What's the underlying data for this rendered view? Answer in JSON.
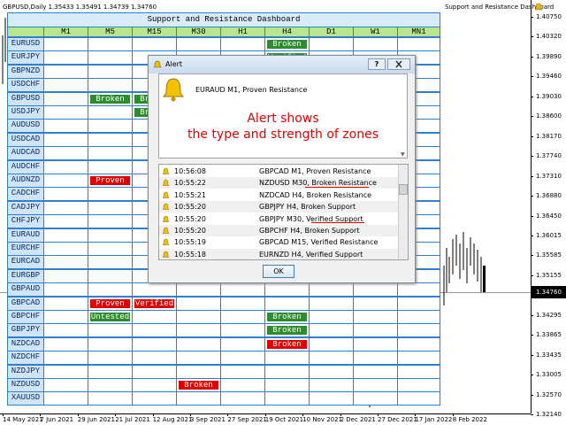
{
  "chart_header": {
    "symbol_info": "GBPUSD,Daily  1.35433 1.35491 1.34739 1.34760",
    "indicator_name": "Support and Resistance Dashboard"
  },
  "price_axis": {
    "labels": [
      "1.40750",
      "1.40320",
      "1.39890",
      "1.39460",
      "1.39030",
      "1.38600",
      "1.38170",
      "1.37740",
      "1.37310",
      "1.36880",
      "1.36450",
      "1.36015",
      "1.35585",
      "1.35155",
      "1.34295",
      "1.33865",
      "1.33435",
      "1.33005",
      "1.32570",
      "1.32140"
    ],
    "current_price": "1.34760"
  },
  "time_axis": {
    "labels": [
      "14 May 2021",
      "7 Jun 2021",
      "29 Jun 2021",
      "21 Jul 2021",
      "12 Aug 2021",
      "3 Sep 2021",
      "27 Sep 2021",
      "19 Oct 2021",
      "10 Nov 2021",
      "2 Dec 2021",
      "27 Dec 2021",
      "17 Jan 2022",
      "8 Feb 2022"
    ]
  },
  "dashboard": {
    "title": "Support and Resistance Dashboard",
    "timeframes": [
      "M1",
      "M5",
      "M15",
      "M30",
      "H1",
      "H4",
      "D1",
      "W1",
      "MN1"
    ],
    "rows": [
      {
        "symbol": "EURUSD",
        "cells": [
          null,
          null,
          null,
          null,
          null,
          {
            "text": "Broken",
            "color": "#2e8b2e"
          },
          null,
          null,
          null
        ]
      },
      {
        "symbol": "EURJPY",
        "cells": [
          null,
          null,
          null,
          null,
          null,
          {
            "text": "Verified",
            "color": "#2e8b2e"
          },
          null,
          null,
          null
        ]
      },
      {
        "symbol": "GBPNZD",
        "cells": [
          null,
          null,
          null,
          null,
          null,
          null,
          null,
          null,
          null
        ]
      },
      {
        "symbol": "USDCHF",
        "cells": [
          null,
          null,
          null,
          null,
          null,
          null,
          null,
          null,
          null
        ]
      },
      {
        "symbol": "GBPUSD",
        "cells": [
          null,
          {
            "text": "Broken",
            "color": "#2e8b2e"
          },
          {
            "text": "Broken",
            "color": "#2e8b2e"
          },
          null,
          null,
          null,
          null,
          null,
          null
        ]
      },
      {
        "symbol": "USDJPY",
        "cells": [
          null,
          null,
          {
            "text": "Broken",
            "color": "#2e8b2e"
          },
          null,
          null,
          null,
          null,
          null,
          null
        ]
      },
      {
        "symbol": "AUDUSD",
        "cells": [
          null,
          null,
          null,
          null,
          null,
          null,
          null,
          null,
          null
        ]
      },
      {
        "symbol": "USDCAD",
        "cells": [
          null,
          null,
          null,
          null,
          null,
          null,
          null,
          null,
          null
        ]
      },
      {
        "symbol": "AUDCAD",
        "cells": [
          null,
          null,
          null,
          null,
          null,
          null,
          null,
          null,
          null
        ]
      },
      {
        "symbol": "AUDCHF",
        "cells": [
          null,
          null,
          null,
          null,
          null,
          null,
          null,
          null,
          null
        ]
      },
      {
        "symbol": "AUDNZD",
        "cells": [
          null,
          {
            "text": "Proven",
            "color": "#e00000"
          },
          null,
          null,
          null,
          null,
          null,
          null,
          null
        ]
      },
      {
        "symbol": "CADCHF",
        "cells": [
          null,
          null,
          null,
          null,
          null,
          null,
          null,
          null,
          null
        ]
      },
      {
        "symbol": "CADJPY",
        "cells": [
          null,
          null,
          null,
          null,
          null,
          null,
          null,
          null,
          null
        ]
      },
      {
        "symbol": "CHFJPY",
        "cells": [
          null,
          null,
          null,
          null,
          null,
          null,
          null,
          null,
          null
        ]
      },
      {
        "symbol": "EURAUD",
        "cells": [
          null,
          null,
          null,
          null,
          null,
          null,
          null,
          null,
          null
        ]
      },
      {
        "symbol": "EURCHF",
        "cells": [
          null,
          null,
          null,
          null,
          null,
          null,
          null,
          null,
          null
        ]
      },
      {
        "symbol": "EURCAD",
        "cells": [
          null,
          null,
          null,
          null,
          null,
          null,
          null,
          null,
          null
        ]
      },
      {
        "symbol": "EURGBP",
        "cells": [
          null,
          null,
          null,
          null,
          null,
          null,
          null,
          null,
          null
        ]
      },
      {
        "symbol": "GBPAUD",
        "cells": [
          null,
          null,
          null,
          null,
          null,
          null,
          null,
          null,
          null
        ]
      },
      {
        "symbol": "GBPCAD",
        "cells": [
          null,
          {
            "text": "Proven",
            "color": "#e00000"
          },
          {
            "text": "Verified",
            "color": "#e00000"
          },
          null,
          null,
          null,
          null,
          null,
          null
        ]
      },
      {
        "symbol": "GBPCHF",
        "cells": [
          null,
          {
            "text": "Untested",
            "color": "#2e8b2e"
          },
          null,
          null,
          null,
          {
            "text": "Broken",
            "color": "#2e8b2e"
          },
          null,
          null,
          null
        ]
      },
      {
        "symbol": "GBPJPY",
        "cells": [
          null,
          null,
          null,
          null,
          null,
          {
            "text": "Broken",
            "color": "#2e8b2e"
          },
          null,
          null,
          null
        ]
      },
      {
        "symbol": "NZDCAD",
        "cells": [
          null,
          null,
          null,
          null,
          null,
          {
            "text": "Broken",
            "color": "#e00000"
          },
          null,
          null,
          null
        ]
      },
      {
        "symbol": "NZDCHF",
        "cells": [
          null,
          null,
          null,
          null,
          null,
          null,
          null,
          null,
          null
        ]
      },
      {
        "symbol": "NZDJPY",
        "cells": [
          null,
          null,
          null,
          null,
          null,
          null,
          null,
          null,
          null
        ]
      },
      {
        "symbol": "NZDUSD",
        "cells": [
          null,
          null,
          null,
          {
            "text": "Broken",
            "color": "#e00000"
          },
          null,
          null,
          null,
          null,
          null
        ]
      },
      {
        "symbol": "XAUUSD",
        "cells": [
          null,
          null,
          null,
          null,
          null,
          null,
          null,
          null,
          null
        ]
      }
    ]
  },
  "dialog": {
    "title": "Alert",
    "help": "?",
    "message": "EURAUD M1, Proven Resistance",
    "annotation": [
      "Alert shows",
      "the type and strength of zones"
    ],
    "log": [
      {
        "time": "10:56:08",
        "text": "GBPCAD M1, Proven Resistance"
      },
      {
        "time": "10:55:22",
        "text": "NZDUSD M30, Broken Resistance"
      },
      {
        "time": "10:55:21",
        "text": "NZDCAD H4, Broken Resistance"
      },
      {
        "time": "10:55:20",
        "text": "GBPJPY H4, Broken Support"
      },
      {
        "time": "10:55:20",
        "text": "GBPJPY M30, Verified Support"
      },
      {
        "time": "10:55:20",
        "text": "GBPCHF H4, Broken Support"
      },
      {
        "time": "10:55:19",
        "text": "GBPCAD M15, Verified Resistance"
      },
      {
        "time": "10:55:18",
        "text": "EURNZD H4, Verified Support"
      }
    ],
    "button": "OK"
  }
}
